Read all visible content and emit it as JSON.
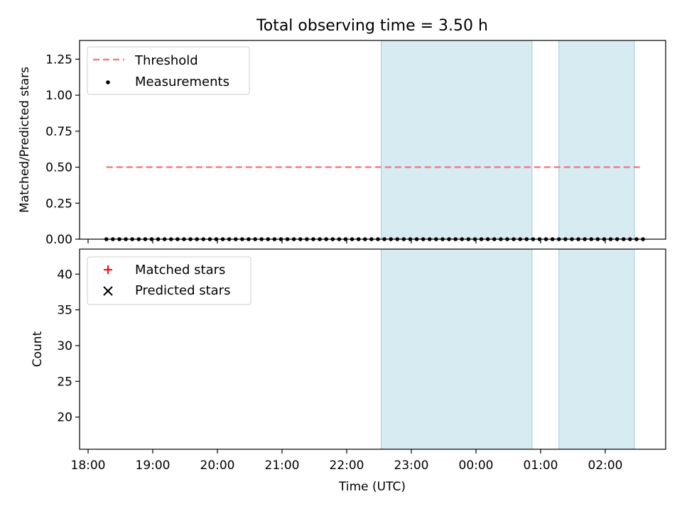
{
  "figure": {
    "title": "Total observing time = 3.50 h",
    "xlabel": "Time (UTC)"
  },
  "chart_data": [
    {
      "type": "scatter",
      "panel": "top",
      "ylabel": "Matched/Predicted stars",
      "ylim": [
        0,
        1.38
      ],
      "yticks": [
        "0.00",
        "0.25",
        "0.50",
        "0.75",
        "1.00",
        "1.25"
      ],
      "ytick_values": [
        0,
        0.25,
        0.5,
        0.75,
        1.0,
        1.25
      ],
      "legend": {
        "placement": "top-left",
        "entries": [
          "Threshold",
          "Measurements"
        ]
      },
      "threshold": {
        "name": "Threshold",
        "value": 0.5,
        "x_range": [
          "18:17",
          "02:33"
        ],
        "color": "#f08080"
      },
      "series": [
        {
          "name": "Measurements",
          "color": "#000000",
          "x": [
            "18:17",
            "18:23",
            "18:29",
            "18:35",
            "18:41",
            "18:47",
            "18:53",
            "18:59",
            "19:05",
            "19:11",
            "19:17",
            "19:23",
            "19:29",
            "19:35",
            "19:41",
            "19:47",
            "19:53",
            "19:59",
            "20:05",
            "20:11",
            "20:17",
            "20:23",
            "20:29",
            "20:35",
            "20:41",
            "20:47",
            "20:53",
            "20:59",
            "21:05",
            "21:11",
            "21:17",
            "21:23",
            "21:29",
            "21:35",
            "21:41",
            "21:47",
            "21:53",
            "21:59",
            "22:05",
            "22:11",
            "22:17",
            "22:23",
            "22:29",
            "22:35",
            "22:41",
            "22:47",
            "22:53",
            "22:59",
            "23:05",
            "23:11",
            "23:17",
            "23:23",
            "23:29",
            "23:35",
            "23:41",
            "23:47",
            "23:53",
            "23:59",
            "00:05",
            "00:11",
            "00:17",
            "00:23",
            "00:29",
            "00:35",
            "00:41",
            "00:47",
            "00:53",
            "00:59",
            "01:05",
            "01:11",
            "01:17",
            "01:23",
            "01:29",
            "01:35",
            "01:41",
            "01:47",
            "01:53",
            "01:59",
            "02:05",
            "02:11",
            "02:17",
            "02:23",
            "02:29",
            "02:35"
          ],
          "y": [
            0,
            0,
            0,
            0,
            0,
            0,
            0,
            0,
            0,
            0,
            0,
            0,
            0,
            0,
            0,
            0,
            0,
            0,
            0,
            0,
            0,
            0,
            0,
            0,
            0,
            0,
            0,
            0,
            0,
            0,
            0,
            0,
            0,
            0,
            0,
            0,
            0,
            0,
            0,
            0,
            0,
            0,
            0,
            0,
            0,
            0,
            0,
            0,
            0,
            0,
            0,
            0,
            0,
            0,
            0,
            0,
            0,
            0,
            0,
            0,
            0,
            0,
            0,
            0,
            0,
            0,
            0,
            0,
            0,
            0,
            0,
            0,
            0,
            0,
            0,
            0,
            0,
            0,
            0,
            0,
            0,
            0,
            0,
            0
          ]
        }
      ]
    },
    {
      "type": "scatter",
      "panel": "bottom",
      "ylabel": "Count",
      "ylim": [
        15.5,
        43.5
      ],
      "yticks": [
        "20",
        "25",
        "30",
        "35",
        "40"
      ],
      "ytick_values": [
        20,
        25,
        30,
        35,
        40
      ],
      "xticks": [
        "18:00",
        "19:00",
        "20:00",
        "21:00",
        "22:00",
        "23:00",
        "00:00",
        "01:00",
        "02:00"
      ],
      "legend": {
        "placement": "top-left",
        "entries": [
          "Matched stars",
          "Predicted stars"
        ]
      },
      "series": [
        {
          "name": "Matched stars",
          "color": "#ff0000",
          "marker": "+",
          "x": [],
          "y": []
        },
        {
          "name": "Predicted stars",
          "color": "#000000",
          "marker": "x",
          "x": [],
          "y": []
        }
      ]
    }
  ],
  "shaded_intervals": {
    "color": "#add8e6",
    "ranges": [
      [
        "22:32",
        "00:52"
      ],
      [
        "01:17",
        "02:27"
      ]
    ]
  }
}
